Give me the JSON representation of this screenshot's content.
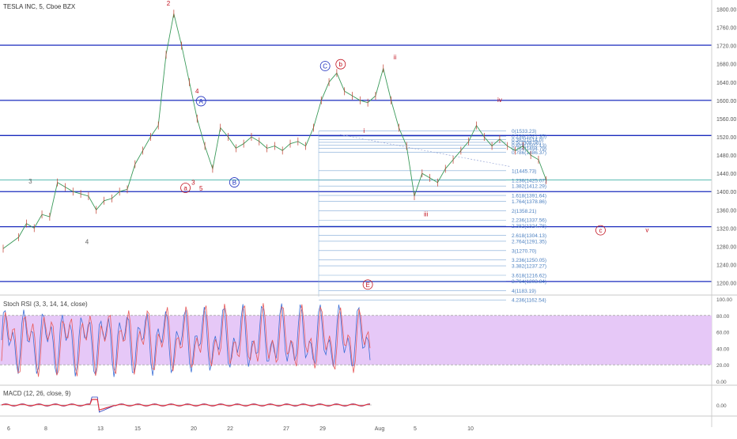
{
  "header": {
    "title": "TESLA INC, 5, Cboe BZX"
  },
  "colors": {
    "level_line": "#1a2bbd",
    "fib_line": "#7fa8d6",
    "fib_text": "#4a7fc0",
    "wave_red": "#c1121f",
    "wave_blue": "#1a2bbd",
    "price_line": "#26a69a",
    "stoch_fill": "#e6c8f7",
    "stoch_k": "#3b6fd6",
    "stoch_d": "#e85a5a",
    "macd": "#2a3ebd",
    "signal": "#e0303e",
    "price_badge": "#26a69a"
  },
  "chart_data": {
    "type": "line",
    "symbol": "TESLA INC",
    "interval": "5",
    "exchange": "Cboe BZX",
    "ylim": [
      1175,
      1820
    ],
    "y_ticks": [
      "1800.00",
      "1760.00",
      "1720.00",
      "1680.00",
      "1640.00",
      "1600.00",
      "1560.00",
      "1520.00",
      "1480.00",
      "1440.00",
      "1400.00",
      "1360.00",
      "1320.00",
      "1280.00",
      "1240.00",
      "1200.00"
    ],
    "x_ticks": [
      "6",
      "8",
      "13",
      "15",
      "20",
      "22",
      "27",
      "29",
      "Aug",
      "5",
      "10"
    ],
    "price_series": [
      [
        0,
        1275
      ],
      [
        2,
        1300
      ],
      [
        3,
        1330
      ],
      [
        4,
        1320
      ],
      [
        5,
        1350
      ],
      [
        6,
        1345
      ],
      [
        7,
        1420
      ],
      [
        8,
        1410
      ],
      [
        9,
        1400
      ],
      [
        10,
        1395
      ],
      [
        11,
        1390
      ],
      [
        12,
        1360
      ],
      [
        13,
        1380
      ],
      [
        14,
        1385
      ],
      [
        15,
        1400
      ],
      [
        16,
        1405
      ],
      [
        17,
        1460
      ],
      [
        18,
        1490
      ],
      [
        19,
        1520
      ],
      [
        20,
        1545
      ],
      [
        21,
        1700
      ],
      [
        22,
        1790
      ],
      [
        23,
        1720
      ],
      [
        24,
        1640
      ],
      [
        25,
        1560
      ],
      [
        26,
        1500
      ],
      [
        27,
        1450
      ],
      [
        28,
        1540
      ],
      [
        29,
        1520
      ],
      [
        30,
        1495
      ],
      [
        31,
        1505
      ],
      [
        32,
        1520
      ],
      [
        33,
        1510
      ],
      [
        34,
        1495
      ],
      [
        35,
        1500
      ],
      [
        36,
        1490
      ],
      [
        37,
        1505
      ],
      [
        38,
        1510
      ],
      [
        39,
        1500
      ],
      [
        40,
        1540
      ],
      [
        41,
        1600
      ],
      [
        42,
        1640
      ],
      [
        43,
        1660
      ],
      [
        44,
        1620
      ],
      [
        45,
        1610
      ],
      [
        46,
        1600
      ],
      [
        47,
        1595
      ],
      [
        48,
        1610
      ],
      [
        49,
        1670
      ],
      [
        50,
        1600
      ],
      [
        51,
        1540
      ],
      [
        52,
        1500
      ],
      [
        53,
        1390
      ],
      [
        54,
        1440
      ],
      [
        55,
        1430
      ],
      [
        56,
        1420
      ],
      [
        57,
        1450
      ],
      [
        58,
        1470
      ],
      [
        59,
        1490
      ],
      [
        60,
        1510
      ],
      [
        61,
        1545
      ],
      [
        62,
        1520
      ],
      [
        63,
        1500
      ],
      [
        64,
        1515
      ],
      [
        65,
        1500
      ],
      [
        66,
        1490
      ],
      [
        67,
        1500
      ],
      [
        68,
        1480
      ],
      [
        69,
        1470
      ],
      [
        70,
        1425
      ]
    ],
    "levels": [
      1721,
      1600,
      1523,
      1400,
      1323,
      1203
    ],
    "current_price": 1425.5,
    "fib_levels": [
      {
        "label": "0(1533.23)",
        "value": 1533.23
      },
      {
        "label": "0.236(1521.35)",
        "value": 1521.35
      },
      {
        "label": "0.382(1514.0)",
        "value": 1514.0
      },
      {
        "label": "0.5(1508.06)",
        "value": 1508.06
      },
      {
        "label": "0.618(1502.13)",
        "value": 1502.13
      },
      {
        "label": "0.764(1494.79)",
        "value": 1494.79
      },
      {
        "label": "0.786(1486.37)",
        "value": 1486.37
      },
      {
        "label": "1(1445.73)",
        "value": 1445.73
      },
      {
        "label": "1.236(1425.07)",
        "value": 1425.07
      },
      {
        "label": "1.382(1412.29)",
        "value": 1412.29
      },
      {
        "label": "1.618(1391.64)",
        "value": 1391.64
      },
      {
        "label": "1.764(1378.86)",
        "value": 1378.86
      },
      {
        "label": "2(1358.21)",
        "value": 1358.21
      },
      {
        "label": "2.236(1337.56)",
        "value": 1337.56
      },
      {
        "label": "2.382(1324.78)",
        "value": 1324.78
      },
      {
        "label": "2.618(1304.13)",
        "value": 1304.13
      },
      {
        "label": "2.764(1291.35)",
        "value": 1291.35
      },
      {
        "label": "3(1270.70)",
        "value": 1270.7
      },
      {
        "label": "3.236(1250.05)",
        "value": 1250.05
      },
      {
        "label": "3.382(1237.27)",
        "value": 1237.27
      },
      {
        "label": "3.618(1216.62)",
        "value": 1216.62
      },
      {
        "label": "3.764(1203.84)",
        "value": 1203.84
      },
      {
        "label": "4(1183.19)",
        "value": 1183.19
      },
      {
        "label": "4.236(1162.54)",
        "value": 1162.54
      }
    ],
    "wave_labels": [
      {
        "text": "2",
        "color": "red",
        "circled": false,
        "x": 21.3,
        "y": 1808
      },
      {
        "text": "3",
        "color": "gray",
        "circled": false,
        "x": 3.5,
        "y": 1418
      },
      {
        "text": "4",
        "color": "gray",
        "circled": false,
        "x": 10.8,
        "y": 1285
      },
      {
        "text": "5",
        "color": "gray",
        "circled": false,
        "x": 19.3,
        "y": 1825
      },
      {
        "text": "4",
        "color": "red",
        "circled": false,
        "x": 25,
        "y": 1615
      },
      {
        "text": "3",
        "color": "red",
        "circled": false,
        "x": 24.5,
        "y": 1415
      },
      {
        "text": "5",
        "color": "red",
        "circled": false,
        "x": 25.5,
        "y": 1402
      },
      {
        "text": "a",
        "color": "red",
        "circled": true,
        "x": 23.5,
        "y": 1403
      },
      {
        "text": "A",
        "color": "blue",
        "circled": true,
        "x": 25.5,
        "y": 1593
      },
      {
        "text": "B",
        "color": "blue",
        "circled": true,
        "x": 29.8,
        "y": 1415
      },
      {
        "text": "C",
        "color": "blue",
        "circled": true,
        "x": 41.5,
        "y": 1670
      },
      {
        "text": "b",
        "color": "red",
        "circled": true,
        "x": 43.5,
        "y": 1674
      },
      {
        "text": "ii",
        "color": "red",
        "circled": false,
        "x": 50.5,
        "y": 1690
      },
      {
        "text": "i",
        "color": "red",
        "circled": false,
        "x": 46.5,
        "y": 1529
      },
      {
        "text": "iii",
        "color": "red",
        "circled": false,
        "x": 54.5,
        "y": 1346
      },
      {
        "text": "iv",
        "color": "red",
        "circled": false,
        "x": 64,
        "y": 1596
      },
      {
        "text": "c",
        "color": "red",
        "circled": true,
        "x": 77,
        "y": 1310
      },
      {
        "text": "v",
        "color": "red",
        "circled": false,
        "x": 83,
        "y": 1311
      },
      {
        "text": "E",
        "color": "red",
        "circled": true,
        "x": 47,
        "y": 1191
      }
    ],
    "stoch_rsi": {
      "label": "Stoch RSI (3, 3, 14, 14, close)",
      "ticks": [
        "100.00",
        "80.00",
        "60.00",
        "40.00",
        "20.00",
        "0.00"
      ],
      "band": [
        20,
        80
      ]
    },
    "macd": {
      "label": "MACD (12, 26, close, 9)",
      "ticks": [
        "0.00"
      ]
    }
  }
}
